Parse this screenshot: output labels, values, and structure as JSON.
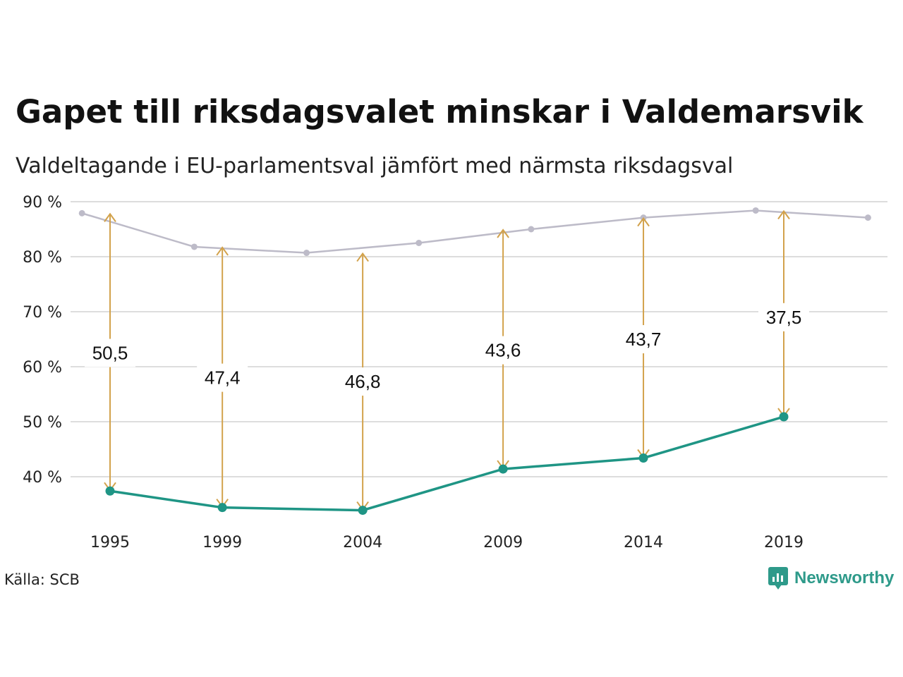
{
  "title": "Gapet till riksdagsvalet minskar i Valdemarsvik",
  "subtitle": "Valdeltagande i EU-parlamentsval jämfört med närmsta riksdagsval",
  "source": "Källa: SCB",
  "brand": "Newsworthy",
  "colors": {
    "riksdag": "#bdbbc8",
    "eu": "#1f9585",
    "gap": "#d2a24c",
    "grid": "#dddddd"
  },
  "chart_data": {
    "type": "line",
    "title": "Gapet till riksdagsvalet minskar i Valdemarsvik",
    "subtitle": "Valdeltagande i EU-parlamentsval jämfört med närmsta riksdagsval",
    "ylim": [
      30,
      90
    ],
    "xlim": [
      1994,
      2023
    ],
    "y_ticks": [
      40,
      50,
      60,
      70,
      80,
      90
    ],
    "y_tick_labels": [
      "40 %",
      "50 %",
      "60 %",
      "70 %",
      "80 %",
      "90 %"
    ],
    "x_ticks": [
      1995,
      1999,
      2004,
      2009,
      2014,
      2019
    ],
    "x_tick_labels": [
      "1995",
      "1999",
      "2004",
      "2009",
      "2014",
      "2019"
    ],
    "grid": true,
    "series": [
      {
        "key": "riksdag",
        "x": [
          1994,
          1998,
          2002,
          2006,
          2010,
          2014,
          2018,
          2022
        ],
        "values": [
          87.9,
          81.8,
          80.7,
          82.5,
          85.0,
          87.1,
          88.4,
          87.1
        ]
      },
      {
        "key": "eu",
        "x": [
          1995,
          1999,
          2004,
          2009,
          2014,
          2019
        ],
        "values": [
          37.4,
          34.4,
          33.9,
          41.4,
          43.4,
          50.9
        ]
      }
    ],
    "gaps": [
      {
        "x": 1995,
        "from": 87.9,
        "to": 37.4,
        "label": "50,5"
      },
      {
        "x": 1999,
        "from": 81.8,
        "to": 34.4,
        "label": "47,4"
      },
      {
        "x": 2004,
        "from": 80.7,
        "to": 33.9,
        "label": "46,8"
      },
      {
        "x": 2009,
        "from": 85.0,
        "to": 41.4,
        "label": "43,6"
      },
      {
        "x": 2014,
        "from": 87.1,
        "to": 43.4,
        "label": "43,7"
      },
      {
        "x": 2019,
        "from": 88.4,
        "to": 50.9,
        "label": "37,5"
      }
    ],
    "gap_label_y": [
      62.5,
      58.0,
      57.3,
      63.0,
      65.0,
      69.0
    ]
  }
}
